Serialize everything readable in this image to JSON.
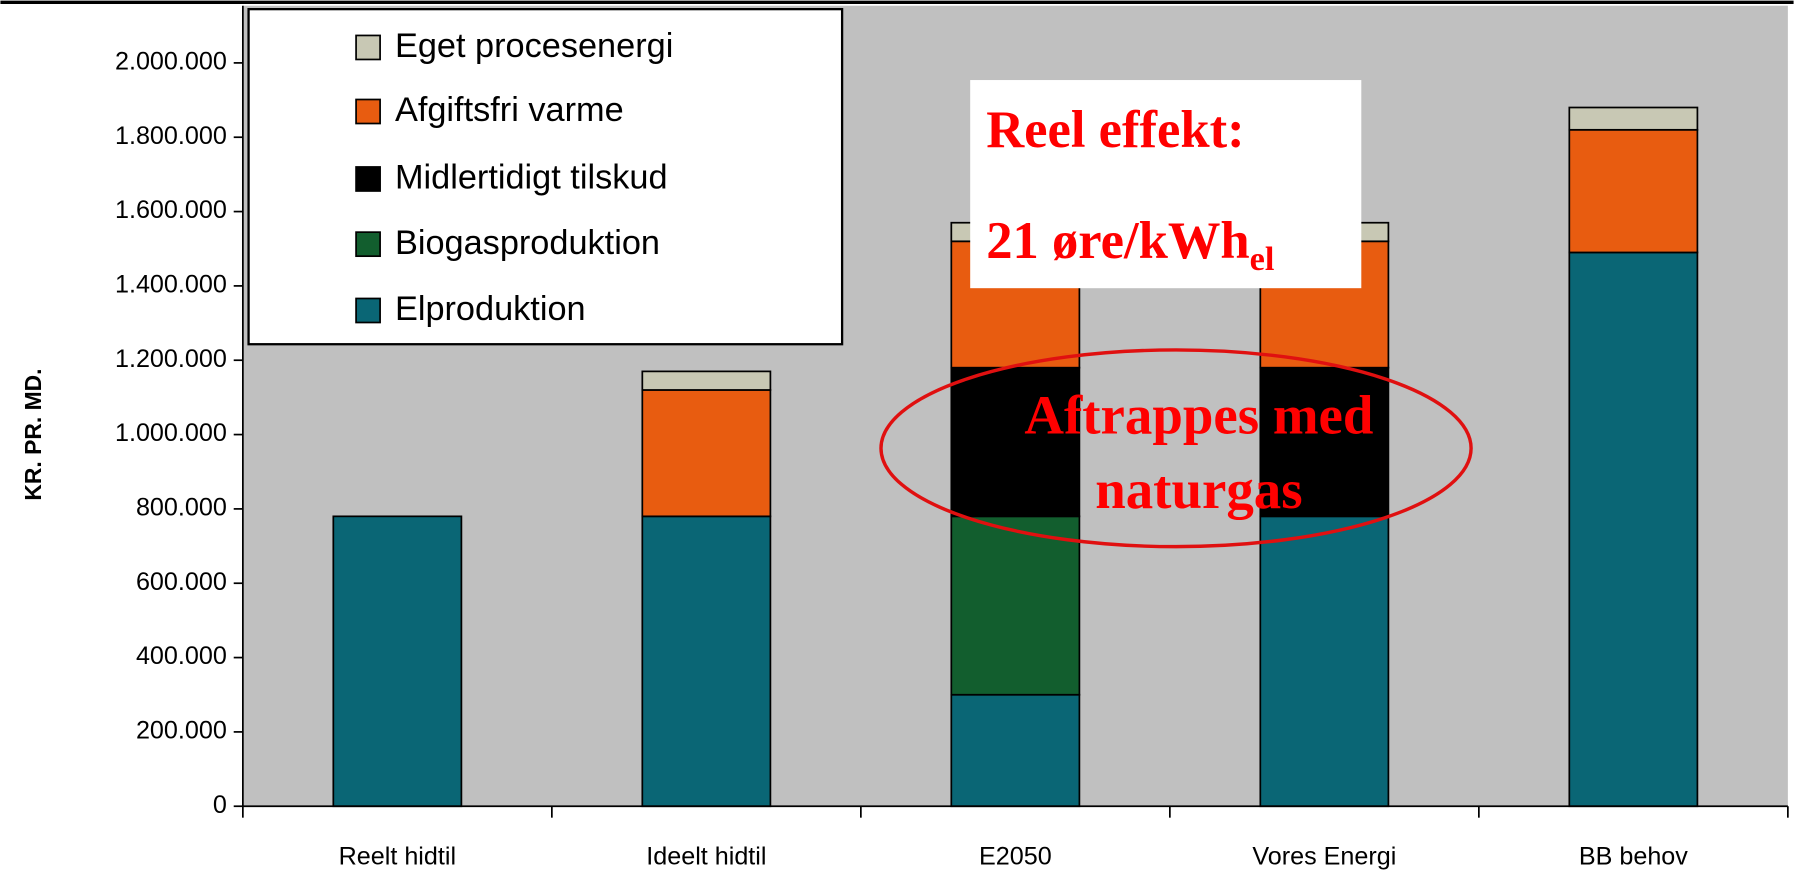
{
  "chart_data": {
    "type": "bar",
    "stacked": true,
    "y_label": "KR. PR. MD.",
    "categories": [
      "Reelt hidtil",
      "Ideelt hidtil",
      "E2050",
      "Vores Energi",
      "BB behov"
    ],
    "series": [
      {
        "name": "Elproduktion",
        "color": "#0a6675",
        "values": [
          780000,
          780000,
          300000,
          780000,
          1490000
        ]
      },
      {
        "name": "Biogasproduktion",
        "color": "#125e2e",
        "values": [
          0,
          0,
          480000,
          0,
          0
        ]
      },
      {
        "name": "Midlertidigt tilskud",
        "color": "#000000",
        "values": [
          0,
          0,
          400000,
          400000,
          0
        ]
      },
      {
        "name": "Afgiftsfri varme",
        "color": "#e85c10",
        "values": [
          0,
          340000,
          340000,
          340000,
          330000
        ]
      },
      {
        "name": "Eget procesenergi",
        "color": "#c8c8b4",
        "values": [
          0,
          50000,
          50000,
          50000,
          60000
        ]
      }
    ],
    "ylim": [
      0,
      2000000
    ],
    "yticks": [
      0,
      {
        "value": 200000,
        "label": "200.000"
      },
      {
        "value": 400000,
        "label": "400.000"
      },
      {
        "value": 600000,
        "label": "600.000"
      },
      {
        "value": 800000,
        "label": "800.000"
      },
      {
        "value": 1000000,
        "label": "1.000.000"
      },
      {
        "value": 1200000,
        "label": "1.200.000"
      },
      {
        "value": 1400000,
        "label": "1.400.000"
      },
      {
        "value": 1600000,
        "label": "1.600.000"
      },
      {
        "value": 1800000,
        "label": "1.800.000"
      },
      {
        "value": 2000000,
        "label": "2.000.000"
      }
    ],
    "grid": true,
    "legend": "top-left",
    "annotations": [
      "Reel effekt:",
      "21 øre/kWh",
      "el",
      "Aftrappes med",
      "naturgas"
    ]
  }
}
